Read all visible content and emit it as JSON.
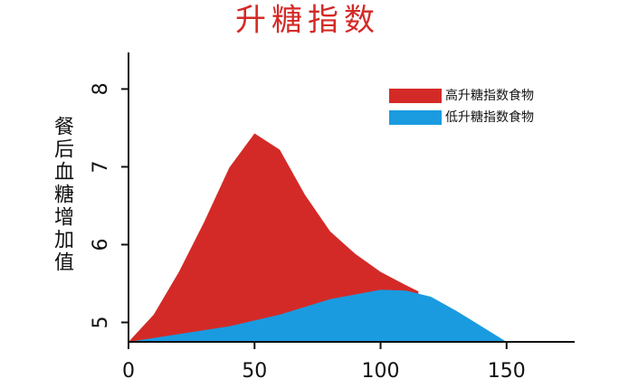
{
  "chart_data": {
    "type": "area",
    "title": "升糖指数",
    "y_label": "餐后血糖增加值",
    "xlim": [
      0,
      177
    ],
    "ylim": [
      4.75,
      8.47
    ],
    "xticks": [
      0,
      50,
      100,
      150
    ],
    "yticks": [
      5,
      6,
      7,
      8
    ],
    "legend": "upper right",
    "series": [
      {
        "name": "高升糖指数食物",
        "color": "#d42a27",
        "x": [
          0,
          10,
          20,
          30,
          40,
          50,
          60,
          70,
          80,
          90,
          100,
          110,
          115
        ],
        "values": [
          4.75,
          5.1,
          5.65,
          6.29,
          6.99,
          7.43,
          7.22,
          6.64,
          6.17,
          5.88,
          5.65,
          5.48,
          5.4
        ]
      },
      {
        "name": "低升糖指数食物",
        "color": "#1a9be0",
        "x": [
          0,
          20,
          40,
          60,
          80,
          100,
          110,
          120,
          130,
          140,
          150
        ],
        "values": [
          4.75,
          4.85,
          4.95,
          5.1,
          5.3,
          5.42,
          5.41,
          5.33,
          5.15,
          4.95,
          4.75
        ]
      }
    ]
  }
}
